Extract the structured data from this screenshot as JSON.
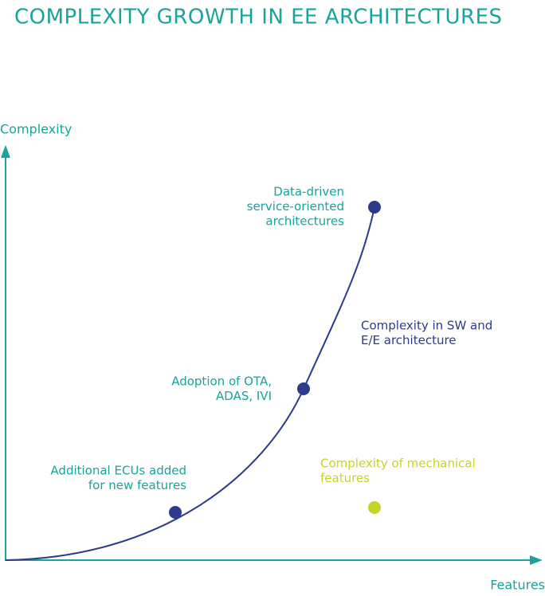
{
  "header": {
    "title": "COMPLEXITY GROWTH IN EE ARCHITECTURES"
  },
  "axes": {
    "y_label": "Complexity",
    "x_label": "Features"
  },
  "milestones": [
    {
      "lines": [
        "Data-driven",
        "service-oriented",
        "architectures"
      ]
    },
    {
      "lines": [
        "Adoption of OTA,",
        "ADAS, IVI"
      ]
    },
    {
      "lines": [
        "Additional ECUs added",
        "for new features"
      ]
    }
  ],
  "curves": [
    {
      "lines": [
        "Complexity in SW and",
        "E/E architecture"
      ]
    },
    {
      "lines": [
        "Complexity of mechanical",
        "features"
      ]
    }
  ]
}
